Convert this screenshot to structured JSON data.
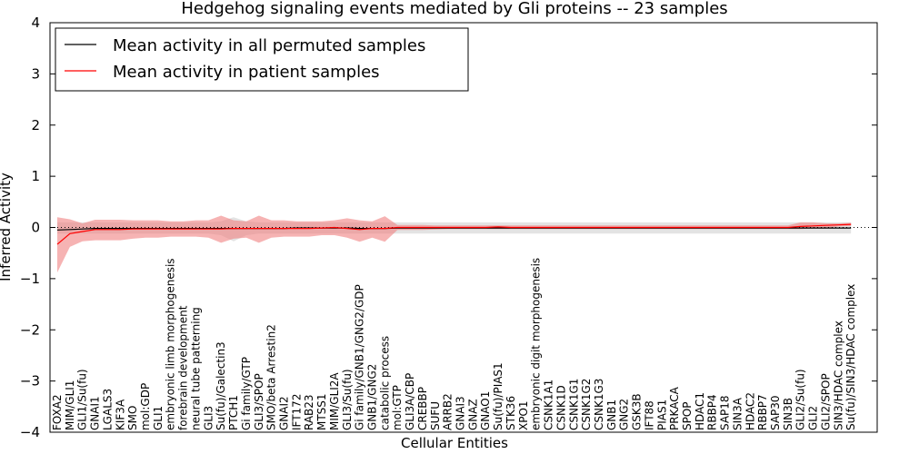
{
  "chart_data": {
    "type": "line",
    "title": "Hedgehog signaling events mediated by Gli proteins -- 23 samples",
    "xlabel": "Cellular Entities",
    "ylabel": "Inferred Activity",
    "ylim": [
      -4,
      4
    ],
    "yticks": [
      "4",
      "3",
      "2",
      "1",
      "0",
      "−1",
      "−2",
      "−3",
      "−4"
    ],
    "legend_position": "upper-left",
    "categories": [
      "FOXA2",
      "MIM/GLI1",
      "GLI1/Su(fu)",
      "GNAI1",
      "LGALS3",
      "KIF3A",
      "SMO",
      "mol:GDP",
      "GLI1",
      "embryonic limb morphogenesis",
      "forebrain development",
      "neural tube patterning",
      "GLI3",
      "Su(fu)/Galectin3",
      "PTCH1",
      "Gi family/GTP",
      "GLI3/SPOP",
      "SMO/beta Arrestin2",
      "GNAI2",
      "IFT172",
      "RAB23",
      "MTSS1",
      "MIM/GLI2A",
      "GLI3/Su(fu)",
      "Gi family/GNB1/GNG2/GDP",
      "GNB1/GNG2",
      "catabolic process",
      "mol:GTP",
      "GLI3A/CBP",
      "CREBBP",
      "SUFU",
      "ARRB2",
      "GNAI3",
      "GNAZ",
      "GNAO1",
      "Su(fu)/PIAS1",
      "STK36",
      "XPO1",
      "embryonic digit morphogenesis",
      "CSNK1A1",
      "CSNK1D",
      "CSNK1G1",
      "CSNK1G2",
      "CSNK1G3",
      "GNB1",
      "GNG2",
      "GSK3B",
      "IFT88",
      "PIAS1",
      "PRKACA",
      "SPOP",
      "HDAC1",
      "RBBP4",
      "SAP18",
      "SIN3A",
      "HDAC2",
      "RBBP7",
      "SAP30",
      "SIN3B",
      "GLI2/Su(fu)",
      "GLI2",
      "GLI2/SPOP",
      "SIN3/HDAC complex",
      "Su(fu)/SIN3/HDAC complex"
    ],
    "series": [
      {
        "name": "Mean activity in all permuted samples",
        "color": "#000000",
        "band_color": "#cccccc",
        "values": [
          -0.05,
          -0.04,
          -0.03,
          -0.02,
          -0.02,
          -0.02,
          -0.02,
          -0.02,
          -0.02,
          -0.02,
          -0.02,
          -0.02,
          -0.02,
          -0.02,
          -0.02,
          -0.02,
          -0.02,
          -0.02,
          -0.02,
          -0.01,
          -0.01,
          -0.01,
          -0.01,
          -0.01,
          -0.02,
          -0.02,
          -0.02,
          -0.01,
          -0.01,
          -0.01,
          -0.01,
          -0.01,
          -0.01,
          -0.01,
          -0.01,
          -0.01,
          -0.01,
          -0.01,
          -0.01,
          -0.01,
          -0.01,
          -0.01,
          -0.01,
          -0.01,
          -0.01,
          -0.01,
          -0.01,
          -0.01,
          -0.01,
          -0.01,
          -0.01,
          -0.01,
          -0.01,
          -0.01,
          -0.01,
          -0.01,
          -0.01,
          -0.01,
          -0.01,
          -0.01,
          -0.01,
          -0.01,
          -0.01,
          -0.01
        ],
        "lower": [
          -0.12,
          -0.12,
          -0.12,
          -0.12,
          -0.12,
          -0.12,
          -0.12,
          -0.12,
          -0.12,
          -0.12,
          -0.12,
          -0.12,
          -0.12,
          -0.15,
          -0.27,
          -0.15,
          -0.12,
          -0.12,
          -0.12,
          -0.12,
          -0.12,
          -0.12,
          -0.12,
          -0.12,
          -0.12,
          -0.12,
          -0.12,
          -0.12,
          -0.12,
          -0.12,
          -0.12,
          -0.12,
          -0.12,
          -0.12,
          -0.12,
          -0.12,
          -0.12,
          -0.12,
          -0.12,
          -0.12,
          -0.12,
          -0.12,
          -0.12,
          -0.12,
          -0.12,
          -0.12,
          -0.12,
          -0.12,
          -0.12,
          -0.12,
          -0.12,
          -0.12,
          -0.12,
          -0.12,
          -0.12,
          -0.12,
          -0.12,
          -0.12,
          -0.12,
          -0.12,
          -0.12,
          -0.12,
          -0.12,
          -0.12
        ],
        "upper": [
          0.1,
          0.1,
          0.1,
          0.1,
          0.1,
          0.1,
          0.1,
          0.1,
          0.1,
          0.1,
          0.1,
          0.1,
          0.1,
          0.12,
          0.2,
          0.12,
          0.1,
          0.1,
          0.1,
          0.1,
          0.1,
          0.1,
          0.1,
          0.1,
          0.1,
          0.1,
          0.1,
          0.1,
          0.1,
          0.1,
          0.1,
          0.1,
          0.1,
          0.1,
          0.1,
          0.1,
          0.1,
          0.1,
          0.1,
          0.1,
          0.1,
          0.1,
          0.1,
          0.1,
          0.1,
          0.1,
          0.1,
          0.1,
          0.1,
          0.1,
          0.1,
          0.1,
          0.1,
          0.1,
          0.1,
          0.1,
          0.1,
          0.1,
          0.1,
          0.1,
          0.1,
          0.1,
          0.1,
          0.1
        ]
      },
      {
        "name": "Mean activity in patient samples",
        "color": "#ff0000",
        "band_color": "#f08080",
        "values": [
          -0.33,
          -0.12,
          -0.08,
          -0.04,
          -0.04,
          -0.04,
          -0.03,
          -0.03,
          -0.03,
          -0.03,
          -0.03,
          -0.03,
          -0.03,
          -0.03,
          -0.02,
          -0.02,
          -0.02,
          -0.02,
          -0.02,
          -0.02,
          -0.02,
          -0.01,
          0.0,
          -0.02,
          -0.04,
          -0.02,
          -0.02,
          0.0,
          0.0,
          0.0,
          0.0,
          0.0,
          0.0,
          0.0,
          0.0,
          0.01,
          0.0,
          0.0,
          0.0,
          0.0,
          0.0,
          0.0,
          0.0,
          0.0,
          0.0,
          0.0,
          0.0,
          0.0,
          0.0,
          0.0,
          0.0,
          0.0,
          0.0,
          0.0,
          0.0,
          0.0,
          0.0,
          0.0,
          0.0,
          0.02,
          0.03,
          0.04,
          0.05,
          0.06
        ],
        "lower": [
          -0.88,
          -0.38,
          -0.27,
          -0.25,
          -0.25,
          -0.25,
          -0.22,
          -0.2,
          -0.2,
          -0.18,
          -0.18,
          -0.18,
          -0.2,
          -0.3,
          -0.22,
          -0.2,
          -0.3,
          -0.2,
          -0.18,
          -0.18,
          -0.18,
          -0.15,
          -0.15,
          -0.2,
          -0.28,
          -0.2,
          -0.28,
          -0.05,
          -0.05,
          -0.05,
          -0.04,
          -0.03,
          -0.03,
          -0.03,
          -0.03,
          -0.03,
          -0.03,
          -0.03,
          -0.03,
          -0.03,
          -0.03,
          -0.03,
          -0.03,
          -0.03,
          -0.03,
          -0.03,
          -0.03,
          -0.03,
          -0.03,
          -0.03,
          -0.03,
          -0.03,
          -0.03,
          -0.03,
          -0.03,
          -0.03,
          -0.03,
          -0.03,
          -0.03,
          -0.03,
          -0.02,
          -0.02,
          0.02,
          0.03
        ],
        "upper": [
          0.2,
          0.16,
          0.08,
          0.15,
          0.15,
          0.15,
          0.14,
          0.14,
          0.14,
          0.12,
          0.12,
          0.14,
          0.14,
          0.23,
          0.14,
          0.12,
          0.23,
          0.14,
          0.14,
          0.12,
          0.12,
          0.12,
          0.14,
          0.18,
          0.14,
          0.12,
          0.22,
          0.05,
          0.05,
          0.05,
          0.04,
          0.04,
          0.04,
          0.04,
          0.04,
          0.04,
          0.04,
          0.04,
          0.04,
          0.04,
          0.04,
          0.04,
          0.04,
          0.04,
          0.04,
          0.04,
          0.04,
          0.04,
          0.04,
          0.04,
          0.04,
          0.04,
          0.04,
          0.04,
          0.04,
          0.04,
          0.04,
          0.04,
          0.04,
          0.1,
          0.1,
          0.08,
          0.08,
          0.09
        ]
      }
    ]
  }
}
